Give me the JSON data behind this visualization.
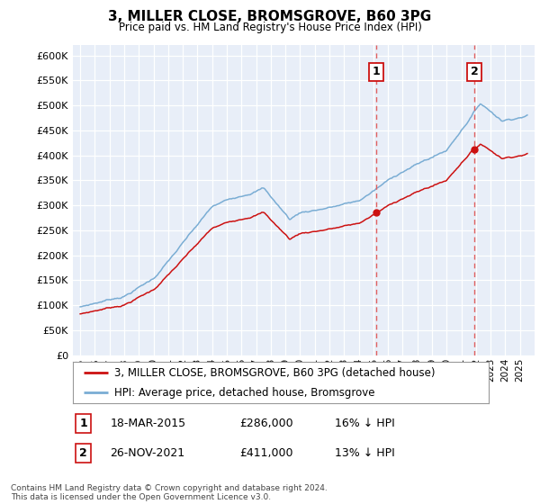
{
  "title": "3, MILLER CLOSE, BROMSGROVE, B60 3PG",
  "subtitle": "Price paid vs. HM Land Registry's House Price Index (HPI)",
  "legend_line1": "3, MILLER CLOSE, BROMSGROVE, B60 3PG (detached house)",
  "legend_line2": "HPI: Average price, detached house, Bromsgrove",
  "annotation1_date": "18-MAR-2015",
  "annotation1_price": "£286,000",
  "annotation1_hpi": "16% ↓ HPI",
  "annotation1_year": 2015.21,
  "annotation1_value": 286000,
  "annotation2_date": "26-NOV-2021",
  "annotation2_price": "£411,000",
  "annotation2_hpi": "13% ↓ HPI",
  "annotation2_year": 2021.9,
  "annotation2_value": 411000,
  "hpi_color": "#7aadd4",
  "price_color": "#cc1111",
  "vline_color": "#e06060",
  "background_color": "#ffffff",
  "plot_bg_color": "#e8eef8",
  "ylim_min": 0,
  "ylim_max": 620000,
  "xmin": 1994.5,
  "xmax": 2026.0,
  "footer": "Contains HM Land Registry data © Crown copyright and database right 2024.\nThis data is licensed under the Open Government Licence v3.0."
}
